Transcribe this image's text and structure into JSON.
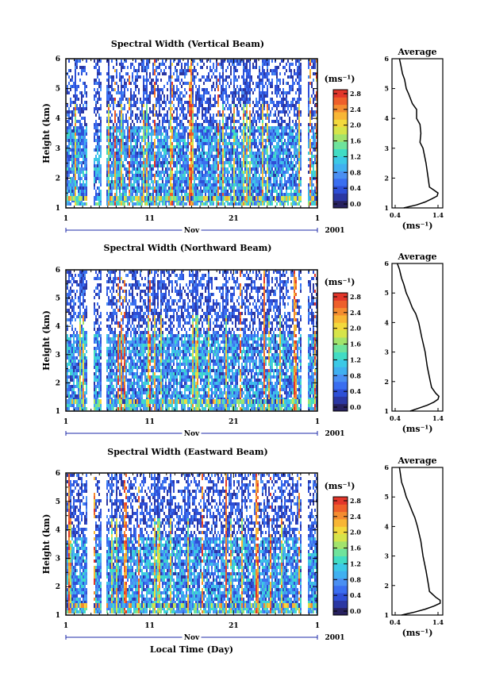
{
  "figure": {
    "month_label": "Nov",
    "year_label": "2001",
    "xlabel_bottom": "Local Time (Day)",
    "x_ticks": [
      "1",
      "11",
      "21",
      "1"
    ],
    "y_label": "Height (km)",
    "y_ticks": [
      "1",
      "2",
      "3",
      "4",
      "5",
      "6"
    ],
    "cbar_unit": "(ms⁻¹)",
    "cbar_ticks": [
      "0.0",
      "0.4",
      "0.8",
      "1.2",
      "1.6",
      "2.0",
      "2.4",
      "2.8"
    ],
    "avg_title": "Average",
    "avg_xticks": [
      "0.4",
      "1.4"
    ],
    "avg_xlabel": "(ms⁻¹)",
    "colors": {
      "colormap": [
        "#27215f",
        "#2b37a3",
        "#2e4fd6",
        "#3a6ef0",
        "#4a8ff2",
        "#40b0f0",
        "#3cc9e6",
        "#41dcc4",
        "#6fe39c",
        "#a2e36c",
        "#d6e44a",
        "#f3d93d",
        "#f8b635",
        "#f48c30",
        "#ee5f2a",
        "#e2362a"
      ]
    }
  },
  "chart_data": [
    {
      "type": "heatmap",
      "title": "Spectral Width (Vertical Beam)",
      "x_range": [
        1,
        31
      ],
      "ylim": [
        1,
        6
      ],
      "zlim": [
        0,
        3.0
      ],
      "average_profile": {
        "xlim": [
          0.4,
          1.4
        ],
        "heights_km": [
          1.0,
          1.1,
          1.2,
          1.3,
          1.4,
          1.5,
          1.6,
          1.7,
          2.0,
          2.5,
          3.0,
          3.2,
          3.5,
          3.8,
          4.0,
          4.3,
          4.5,
          4.8,
          5.0,
          5.3,
          5.5,
          5.8,
          6.0
        ],
        "width_ms": [
          0.6,
          0.9,
          1.1,
          1.25,
          1.38,
          1.4,
          1.3,
          1.2,
          1.17,
          1.12,
          1.05,
          0.98,
          1.0,
          0.98,
          0.9,
          0.9,
          0.8,
          0.72,
          0.66,
          0.62,
          0.57,
          0.53,
          0.5
        ]
      }
    },
    {
      "type": "heatmap",
      "title": "Spectral Width (Northward Beam)",
      "x_range": [
        1,
        31
      ],
      "ylim": [
        1,
        6
      ],
      "zlim": [
        0,
        3.0
      ],
      "average_profile": {
        "xlim": [
          0.4,
          1.4
        ],
        "heights_km": [
          1.0,
          1.1,
          1.2,
          1.3,
          1.4,
          1.5,
          1.6,
          1.8,
          2.0,
          2.5,
          3.0,
          3.5,
          4.0,
          4.3,
          4.5,
          4.8,
          5.0,
          5.3,
          5.5,
          5.8,
          6.0
        ],
        "width_ms": [
          0.75,
          0.95,
          1.15,
          1.3,
          1.4,
          1.42,
          1.35,
          1.25,
          1.22,
          1.15,
          1.1,
          1.02,
          0.95,
          0.88,
          0.8,
          0.72,
          0.66,
          0.6,
          0.55,
          0.5,
          0.45
        ]
      }
    },
    {
      "type": "heatmap",
      "title": "Spectral Width (Eastward Beam)",
      "x_range": [
        1,
        31
      ],
      "ylim": [
        1,
        6
      ],
      "zlim": [
        0,
        3.0
      ],
      "average_profile": {
        "xlim": [
          0.4,
          1.4
        ],
        "heights_km": [
          1.0,
          1.1,
          1.2,
          1.3,
          1.4,
          1.5,
          1.6,
          1.8,
          2.0,
          2.5,
          3.0,
          3.5,
          4.0,
          4.3,
          4.5,
          4.8,
          5.0,
          5.3,
          5.5,
          5.8,
          6.0
        ],
        "width_ms": [
          0.55,
          0.85,
          1.1,
          1.3,
          1.45,
          1.45,
          1.35,
          1.2,
          1.18,
          1.12,
          1.05,
          1.0,
          0.92,
          0.86,
          0.8,
          0.72,
          0.66,
          0.6,
          0.55,
          0.52,
          0.5
        ]
      }
    }
  ]
}
